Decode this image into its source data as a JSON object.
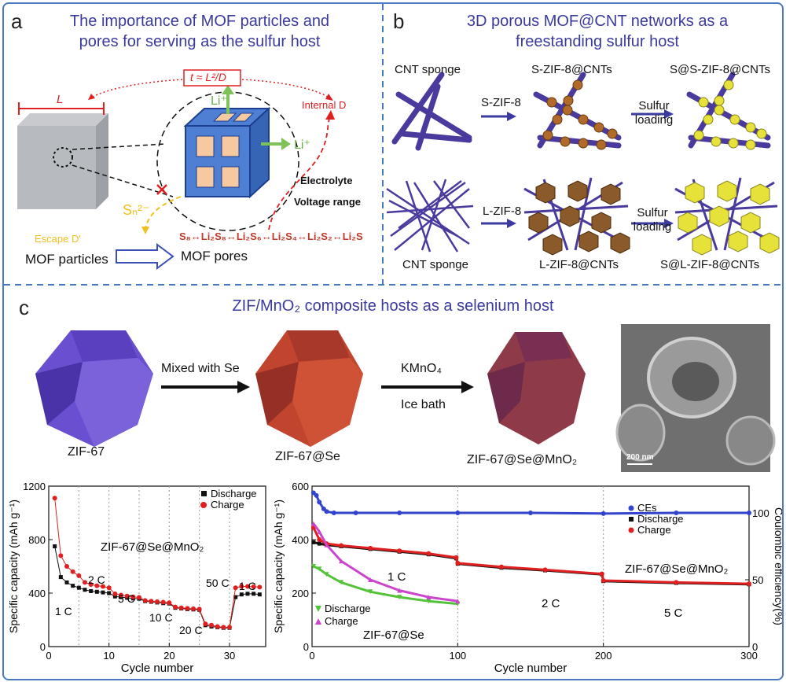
{
  "panel_a": {
    "label": "a",
    "title": "The importance of MOF particles and pores for serving as the sulfur host",
    "time_eq": "t ≈ L²/D",
    "L": "L",
    "li_top": "Li⁺",
    "li_right": "Li⁺",
    "internal_d": "Internal D",
    "electrolyte": "Electrolyte",
    "voltage": "Voltage range",
    "sn": "Sₙ²⁻",
    "escape": "Escape D'",
    "reaction": "S₈↔Li₂S₈↔Li₂S₆↔Li₂S₄↔Li₂S₂↔Li₂S",
    "particles": "MOF particles",
    "pores": "MOF pores"
  },
  "panel_b": {
    "label": "b",
    "title": "3D porous MOF@CNT networks as a freestanding sulfur host",
    "cnt_sponge_top": "CNT sponge",
    "s_zif8": "S-ZIF-8",
    "s_zif8_cnts": "S-ZIF-8@CNTs",
    "sulfur_loading_1": "Sulfur loading",
    "s_s_zif8_cnts": "S@S-ZIF-8@CNTs",
    "l_zif8": "L-ZIF-8",
    "sulfur_loading_2": "Sulfur loading",
    "cnt_sponge_bottom": "CNT sponge",
    "l_zif8_cnts": "L-ZIF-8@CNTs",
    "s_l_zif8_cnts": "S@L-ZIF-8@CNTs"
  },
  "panel_c": {
    "label": "c",
    "title": "ZIF/MnO₂ composite hosts as a selenium host",
    "zif67": "ZIF-67",
    "mixed": "Mixed with Se",
    "zif67se": "ZIF-67@Se",
    "kmno4": "KMnO₄",
    "icebath": "Ice bath",
    "zif67semno2": "ZIF-67@Se@MnO₂",
    "scale_bar": "200 nm"
  },
  "colors": {
    "frame": "#4a79c0",
    "title": "#3b3a9e",
    "discharge": "#111111",
    "charge": "#e02020",
    "ces": "#3344cc",
    "green": "#55c23b",
    "magenta": "#cc44cc"
  },
  "chart_data": [
    {
      "type": "scatter",
      "title": "ZIF-67@Se@MnO₂",
      "xlabel": "Cycle number",
      "ylabel": "Specific capacity (mAh g⁻¹)",
      "xlim": [
        0,
        36
      ],
      "ylim": [
        0,
        1200
      ],
      "xticks": [
        0,
        10,
        20,
        30
      ],
      "yticks": [
        0,
        400,
        800,
        1200
      ],
      "annotations": [
        "1 C",
        "2 C",
        "5 C",
        "10 C",
        "20 C",
        "50 C",
        "1 C"
      ],
      "legend": "top-right",
      "series": [
        {
          "name": "Discharge",
          "x": [
            1,
            2,
            3,
            4,
            5,
            6,
            7,
            8,
            9,
            10,
            11,
            12,
            13,
            14,
            15,
            16,
            17,
            18,
            19,
            20,
            21,
            22,
            23,
            24,
            25,
            26,
            27,
            28,
            29,
            30,
            31,
            32,
            33,
            34,
            35
          ],
          "values": [
            750,
            520,
            480,
            455,
            440,
            425,
            415,
            410,
            405,
            400,
            375,
            370,
            365,
            360,
            358,
            340,
            335,
            330,
            325,
            322,
            290,
            285,
            280,
            278,
            275,
            160,
            150,
            145,
            140,
            140,
            370,
            390,
            395,
            395,
            390
          ]
        },
        {
          "name": "Charge",
          "x": [
            1,
            2,
            3,
            4,
            5,
            6,
            7,
            8,
            9,
            10,
            11,
            12,
            13,
            14,
            15,
            16,
            17,
            18,
            19,
            20,
            21,
            22,
            23,
            24,
            25,
            26,
            27,
            28,
            29,
            30,
            31,
            32,
            33,
            34,
            35
          ],
          "values": [
            1110,
            680,
            600,
            560,
            530,
            480,
            465,
            455,
            450,
            440,
            395,
            385,
            378,
            372,
            368,
            345,
            340,
            336,
            332,
            328,
            296,
            290,
            286,
            283,
            280,
            170,
            160,
            150,
            145,
            145,
            440,
            450,
            450,
            448,
            445
          ]
        }
      ]
    },
    {
      "type": "scatter",
      "xlabel": "Cycle number",
      "ylabel": "Specific capacity (mAh g⁻¹)",
      "y2label": "Coulombic efficiency(%)",
      "xlim": [
        0,
        300
      ],
      "ylim": [
        0,
        600
      ],
      "y2lim": [
        0,
        120
      ],
      "xticks": [
        0,
        100,
        200,
        300
      ],
      "yticks": [
        0,
        200,
        400,
        600
      ],
      "y2ticks": [
        0,
        50,
        100
      ],
      "annotations": [
        "1 C",
        "2 C",
        "5 C",
        "ZIF-67@Se@MnO₂",
        "ZIF-67@Se"
      ],
      "legends": [
        "CEs",
        "Discharge",
        "Charge",
        "Discharge",
        "Charge"
      ],
      "series": [
        {
          "name": "CEs",
          "x": [
            1,
            3,
            5,
            8,
            10,
            15,
            30,
            60,
            100,
            150,
            200,
            250,
            300
          ],
          "values": [
            115,
            113,
            108,
            103,
            101,
            100,
            100,
            100,
            100,
            100,
            99.5,
            100,
            100
          ]
        },
        {
          "name": "Discharge",
          "x": [
            1,
            5,
            10,
            20,
            40,
            60,
            80,
            99,
            100,
            130,
            160,
            199,
            200,
            250,
            300
          ],
          "values": [
            390,
            385,
            380,
            375,
            365,
            355,
            345,
            330,
            310,
            295,
            285,
            270,
            245,
            238,
            233
          ]
        },
        {
          "name": "Charge",
          "x": [
            1,
            5,
            10,
            20,
            40,
            60,
            80,
            99,
            100,
            130,
            160,
            199,
            200,
            250,
            300
          ],
          "values": [
            445,
            400,
            385,
            378,
            368,
            358,
            348,
            333,
            312,
            298,
            287,
            272,
            247,
            240,
            235
          ]
        },
        {
          "name": "Discharge",
          "x": [
            1,
            5,
            10,
            20,
            40,
            60,
            80,
            100
          ],
          "values": [
            300,
            290,
            270,
            240,
            205,
            185,
            170,
            160
          ]
        },
        {
          "name": "Charge",
          "x": [
            1,
            5,
            10,
            20,
            40,
            60,
            80,
            100
          ],
          "values": [
            460,
            430,
            380,
            320,
            250,
            210,
            185,
            170
          ]
        }
      ]
    }
  ]
}
